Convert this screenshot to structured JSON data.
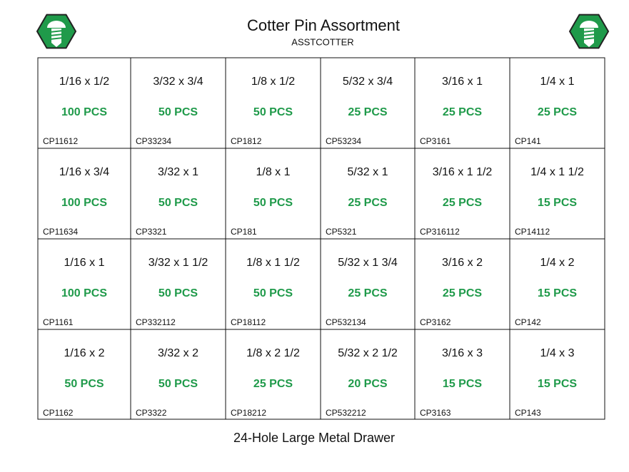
{
  "header": {
    "title": "Cotter Pin Assortment",
    "subtitle": "ASSTCOTTER"
  },
  "grid": {
    "rows": [
      [
        {
          "size": "1/16 x 1/2",
          "qty": "100 PCS",
          "code": "CP11612"
        },
        {
          "size": "3/32 x 3/4",
          "qty": "50 PCS",
          "code": "CP33234"
        },
        {
          "size": "1/8 x 1/2",
          "qty": "50 PCS",
          "code": "CP1812"
        },
        {
          "size": "5/32 x 3/4",
          "qty": "25 PCS",
          "code": "CP53234"
        },
        {
          "size": "3/16 x 1",
          "qty": "25 PCS",
          "code": "CP3161"
        },
        {
          "size": "1/4 x 1",
          "qty": "25 PCS",
          "code": "CP141"
        }
      ],
      [
        {
          "size": "1/16 x 3/4",
          "qty": "100 PCS",
          "code": "CP11634"
        },
        {
          "size": "3/32 x 1",
          "qty": "50 PCS",
          "code": "CP3321"
        },
        {
          "size": "1/8 x 1",
          "qty": "50 PCS",
          "code": "CP181"
        },
        {
          "size": "5/32 x 1",
          "qty": "25 PCS",
          "code": "CP5321"
        },
        {
          "size": "3/16 x 1 1/2",
          "qty": "25 PCS",
          "code": "CP316112"
        },
        {
          "size": "1/4 x 1 1/2",
          "qty": "15 PCS",
          "code": "CP14112"
        }
      ],
      [
        {
          "size": "1/16 x 1",
          "qty": "100 PCS",
          "code": "CP1161"
        },
        {
          "size": "3/32 x 1 1/2",
          "qty": "50 PCS",
          "code": "CP332112"
        },
        {
          "size": "1/8 x 1 1/2",
          "qty": "50 PCS",
          "code": "CP18112"
        },
        {
          "size": "5/32 x 1 3/4",
          "qty": "25 PCS",
          "code": "CP532134"
        },
        {
          "size": "3/16 x 2",
          "qty": "25 PCS",
          "code": "CP3162"
        },
        {
          "size": "1/4 x 2",
          "qty": "15 PCS",
          "code": "CP142"
        }
      ],
      [
        {
          "size": "1/16 x 2",
          "qty": "50 PCS",
          "code": "CP1162"
        },
        {
          "size": "3/32 x 2",
          "qty": "50 PCS",
          "code": "CP3322"
        },
        {
          "size": "1/8 x 2 1/2",
          "qty": "25 PCS",
          "code": "CP18212"
        },
        {
          "size": "5/32 x 2 1/2",
          "qty": "20 PCS",
          "code": "CP532212"
        },
        {
          "size": "3/16 x 3",
          "qty": "15 PCS",
          "code": "CP3163"
        },
        {
          "size": "1/4 x 3",
          "qty": "15 PCS",
          "code": "CP143"
        }
      ]
    ]
  },
  "footer": {
    "text": "24-Hole Large Metal Drawer"
  }
}
